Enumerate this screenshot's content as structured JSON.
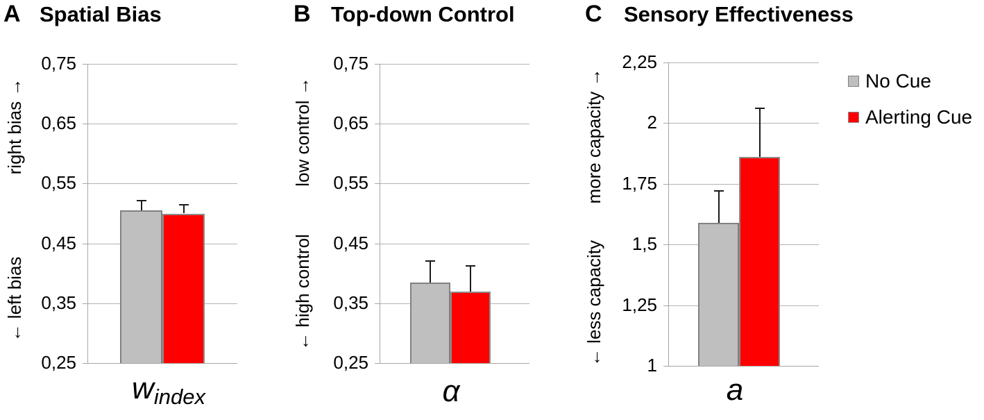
{
  "legend": {
    "items": [
      {
        "label": "No Cue",
        "color": "#bfbfbf",
        "border": "#808080"
      },
      {
        "label": "Alerting Cue",
        "color": "#ff0000",
        "border": "#8c8c8c"
      }
    ]
  },
  "chart_data": [
    {
      "type": "bar",
      "panel_letter": "A",
      "title": "Spatial Bias",
      "categories": [
        "No Cue",
        "Alerting Cue"
      ],
      "values": [
        0.505,
        0.5
      ],
      "errors": [
        0.017,
        0.015
      ],
      "ylim": [
        0.25,
        0.75
      ],
      "yticks": [
        {
          "value": 0.75,
          "label": "0,75"
        },
        {
          "value": 0.65,
          "label": "0,65"
        },
        {
          "value": 0.55,
          "label": "0,55"
        },
        {
          "value": 0.45,
          "label": "0,45"
        },
        {
          "value": 0.35,
          "label": "0,35"
        },
        {
          "value": 0.25,
          "label": "0,25"
        }
      ],
      "ylabel_upper": "right bias →",
      "ylabel_lower": "← left bias",
      "xlabel": {
        "base": "w",
        "sub": "index"
      },
      "grid": true,
      "legend_position": "none"
    },
    {
      "type": "bar",
      "panel_letter": "B",
      "title": "Top-down Control",
      "categories": [
        "No Cue",
        "Alerting Cue"
      ],
      "values": [
        0.385,
        0.37
      ],
      "errors": [
        0.036,
        0.042
      ],
      "ylim": [
        0.25,
        0.75
      ],
      "yticks": [
        {
          "value": 0.75,
          "label": "0,75"
        },
        {
          "value": 0.65,
          "label": "0,65"
        },
        {
          "value": 0.55,
          "label": "0,55"
        },
        {
          "value": 0.45,
          "label": "0,45"
        },
        {
          "value": 0.35,
          "label": "0,35"
        },
        {
          "value": 0.25,
          "label": "0,25"
        }
      ],
      "ylabel_upper": "low control →",
      "ylabel_lower": "← high control",
      "xlabel": {
        "base": "α",
        "sub": ""
      },
      "grid": true,
      "legend_position": "none"
    },
    {
      "type": "bar",
      "panel_letter": "C",
      "title": "Sensory Effectiveness",
      "categories": [
        "No Cue",
        "Alerting Cue"
      ],
      "values": [
        1.59,
        1.86
      ],
      "errors": [
        0.13,
        0.2
      ],
      "ylim": [
        1.0,
        2.25
      ],
      "yticks": [
        {
          "value": 2.25,
          "label": "2,25"
        },
        {
          "value": 2.0,
          "label": "2"
        },
        {
          "value": 1.75,
          "label": "1,75"
        },
        {
          "value": 1.5,
          "label": "1,5"
        },
        {
          "value": 1.25,
          "label": "1,25"
        },
        {
          "value": 1.0,
          "label": "1"
        }
      ],
      "ylabel_upper": "more capacity →",
      "ylabel_lower": "← less capacity",
      "xlabel": {
        "base": "a",
        "sub": ""
      },
      "grid": true,
      "legend_position": "right"
    }
  ]
}
